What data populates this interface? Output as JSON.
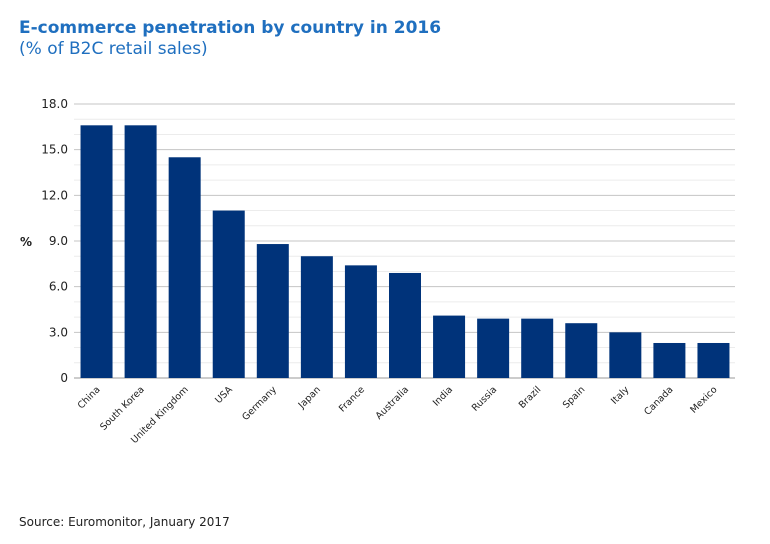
{
  "chart_data": {
    "type": "bar",
    "title": "E-commerce penetration by country in 2016",
    "subtitle": "(% of B2C retail sales)",
    "ylabel": "%",
    "xlabel": "",
    "ylim": [
      0,
      18
    ],
    "yticks": [
      "0",
      "3.0",
      "6.0",
      "9.0",
      "12.0",
      "15.0",
      "18.0"
    ],
    "grid": true,
    "categories": [
      "China",
      "South Korea",
      "United Kingdom",
      "USA",
      "Germany",
      "Japan",
      "France",
      "Australia",
      "India",
      "Russia",
      "Brazil",
      "Spain",
      "Italy",
      "Canada",
      "Mexico"
    ],
    "values": [
      16.6,
      16.6,
      14.5,
      11.0,
      8.8,
      8.0,
      7.4,
      6.9,
      4.1,
      3.9,
      3.9,
      3.6,
      3.0,
      2.3,
      2.3
    ],
    "bar_color": "#00337a",
    "source": "Source: Euromonitor, January 2017"
  }
}
